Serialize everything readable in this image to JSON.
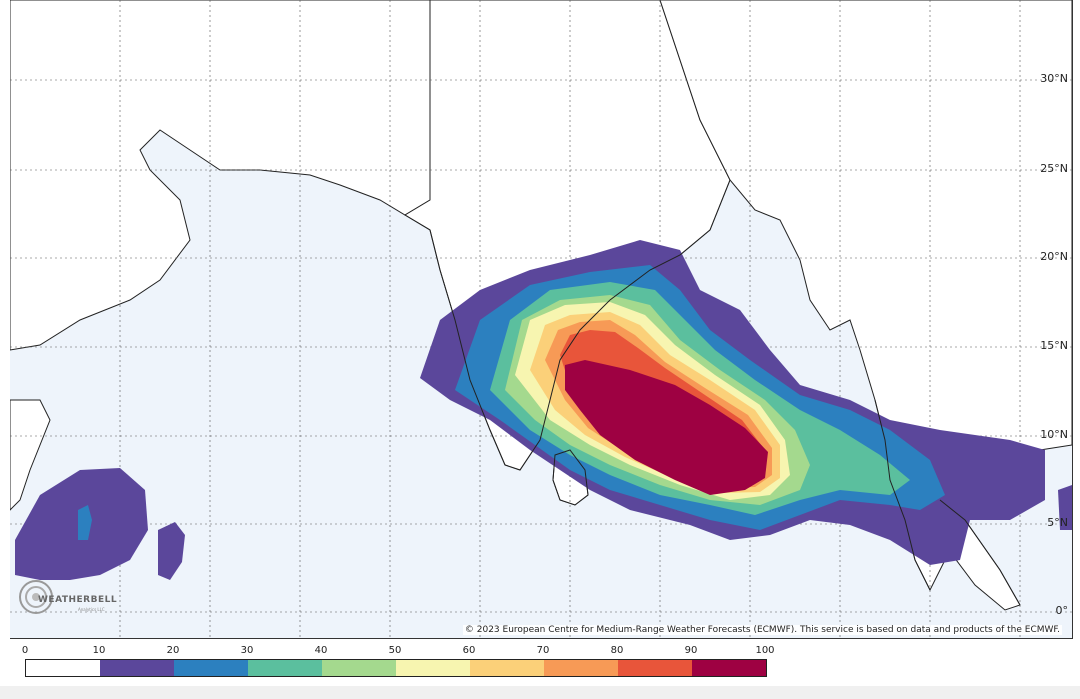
{
  "map": {
    "lat_labels": [
      "30°N",
      "25°N",
      "20°N",
      "15°N",
      "10°N",
      "5°N",
      "0°"
    ],
    "copyright": "© 2023 European Centre for Medium-Range Weather Forecasts (ECMWF). This service is based on data and products of the ECMWF.",
    "logo": {
      "text": "WEATHERBELL",
      "subtext": "Analytics LLC"
    },
    "colors": {
      "ocean": "#eef4fb",
      "land": "#ffffff",
      "border": "#222222"
    }
  },
  "colorbar": {
    "ticks": [
      "0",
      "10",
      "20",
      "30",
      "40",
      "50",
      "60",
      "70",
      "80",
      "90",
      "100"
    ],
    "colors": [
      "#ffffff",
      "#5b479b",
      "#2c80bf",
      "#5bbf9e",
      "#a4d98e",
      "#f7f5b0",
      "#fbd079",
      "#f79a56",
      "#e8553a",
      "#9e0142"
    ]
  }
}
